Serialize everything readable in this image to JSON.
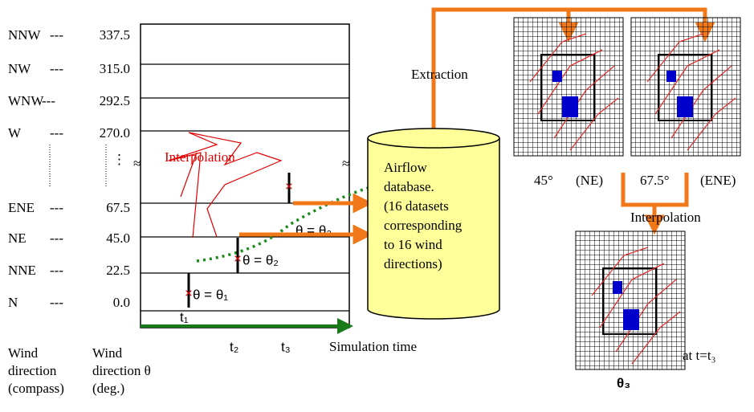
{
  "directions": [
    {
      "compass": "NNW",
      "sep": "---",
      "degrees": "337.5"
    },
    {
      "compass": "NW",
      "sep": "---",
      "degrees": "315.0"
    },
    {
      "compass": "WNW",
      "sep": "---",
      "degrees": "292.5"
    },
    {
      "compass": "W",
      "sep": "---",
      "degrees": "270.0"
    },
    {
      "compass": "ENE",
      "sep": "---",
      "degrees": "67.5"
    },
    {
      "compass": "NE",
      "sep": "---",
      "degrees": "45.0"
    },
    {
      "compass": "NNE",
      "sep": "---",
      "degrees": "22.5"
    },
    {
      "compass": "N",
      "sep": "---",
      "degrees": "0.0"
    }
  ],
  "axis_labels": {
    "compass": [
      "Wind",
      "direction",
      "(compass)"
    ],
    "degrees": [
      "Wind",
      "direction  θ",
      "(deg.)"
    ],
    "time": "Simulation time"
  },
  "times": [
    "t₁",
    "t₂",
    "t₃"
  ],
  "annotations": {
    "interpolation": "Interpolation",
    "theta1": "θ = θ₁",
    "theta2": "θ = θ₂",
    "theta3": "θ = θ₃"
  },
  "database": [
    "Airflow",
    "database.",
    "(16 datasets",
    "corresponding",
    "to 16 wind",
    "directions)"
  ],
  "extraction": "Extraction",
  "grids": [
    {
      "angle": "45°",
      "name": "(NE)"
    },
    {
      "angle": "67.5°",
      "name": "(ENE)"
    }
  ],
  "interpolation": "Interpolation",
  "result": {
    "time": "at t=t₃",
    "label": "θ₃"
  }
}
